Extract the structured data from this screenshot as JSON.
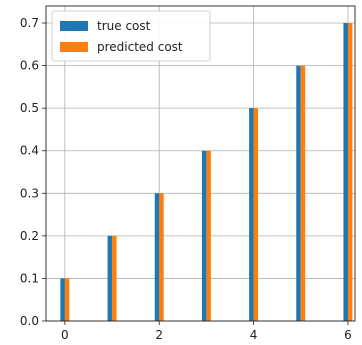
{
  "chart_data": {
    "type": "bar",
    "x": [
      0,
      1,
      2,
      3,
      4,
      5,
      6
    ],
    "series": [
      {
        "name": "true cost",
        "values": [
          0.1,
          0.2,
          0.3,
          0.4,
          0.5,
          0.6,
          0.7
        ],
        "color": "#1f77b4"
      },
      {
        "name": "predicted cost",
        "values": [
          0.1,
          0.2,
          0.3,
          0.4,
          0.5,
          0.6,
          0.7
        ],
        "color": "#ff7f0e"
      }
    ],
    "title": "",
    "xlabel": "",
    "ylabel": "",
    "xlim": [
      -0.4,
      6.15
    ],
    "ylim": [
      0.0,
      0.74
    ],
    "xticks": [
      "0",
      "2",
      "4",
      "6"
    ],
    "yticks": [
      "0.0",
      "0.1",
      "0.2",
      "0.3",
      "0.4",
      "0.5",
      "0.6",
      "0.7"
    ],
    "grid": true,
    "legend_position": "top-left"
  }
}
